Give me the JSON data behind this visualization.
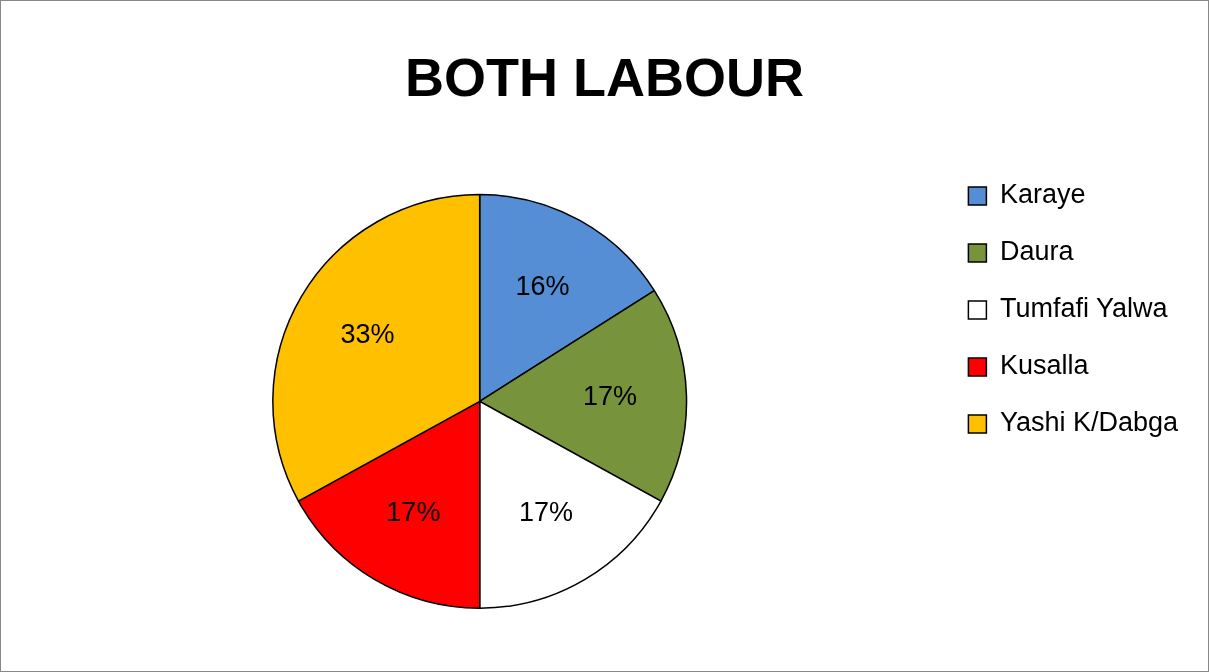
{
  "chart_data": {
    "type": "pie",
    "title": "BOTH LABOUR",
    "categories": [
      "Karaye",
      "Daura",
      "Tumfafi Yalwa",
      "Kusalla",
      "Yashi K/Dabga"
    ],
    "values": [
      16,
      17,
      17,
      17,
      33
    ],
    "value_labels": [
      "16%",
      "17%",
      "17%",
      "17%",
      "33%"
    ],
    "colors": [
      "#558ed5",
      "#77933c",
      "#ffffff",
      "#ff0000",
      "#ffc000"
    ],
    "legend": "right"
  }
}
